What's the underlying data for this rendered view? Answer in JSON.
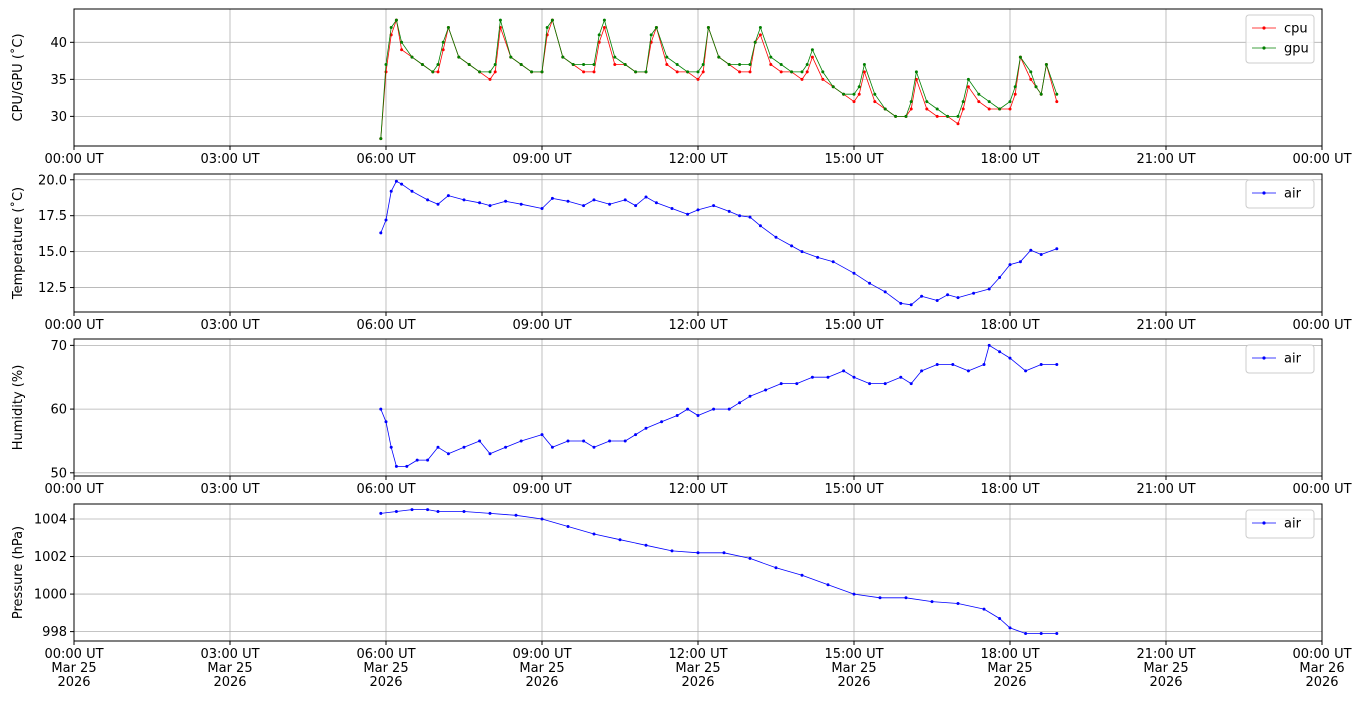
{
  "chart_data": [
    {
      "type": "line",
      "ylabel": "CPU/GPU (˚C)",
      "ylim": [
        26,
        44.5
      ],
      "yticks": [
        30,
        35,
        40
      ],
      "x_tick_labels": [
        "00:00 UT",
        "03:00 UT",
        "06:00 UT",
        "09:00 UT",
        "12:00 UT",
        "15:00 UT",
        "18:00 UT",
        "21:00 UT",
        "00:00 UT"
      ],
      "x_unit": "hours since Mar 25 2026 00:00 UT",
      "xlim": [
        0,
        24
      ],
      "grid": true,
      "legend_position": "top-right",
      "series": [
        {
          "name": "cpu",
          "color": "#ff0000",
          "x": [
            5.9,
            6.0,
            6.1,
            6.2,
            6.3,
            6.5,
            6.7,
            6.9,
            7.0,
            7.1,
            7.2,
            7.4,
            7.6,
            7.8,
            8.0,
            8.1,
            8.2,
            8.4,
            8.6,
            8.8,
            9.0,
            9.1,
            9.2,
            9.4,
            9.6,
            9.8,
            10.0,
            10.1,
            10.2,
            10.4,
            10.6,
            10.8,
            11.0,
            11.1,
            11.2,
            11.4,
            11.6,
            11.8,
            12.0,
            12.1,
            12.2,
            12.4,
            12.6,
            12.8,
            13.0,
            13.1,
            13.2,
            13.4,
            13.6,
            13.8,
            14.0,
            14.1,
            14.2,
            14.4,
            14.6,
            14.8,
            15.0,
            15.1,
            15.2,
            15.4,
            15.6,
            15.8,
            16.0,
            16.1,
            16.2,
            16.4,
            16.6,
            16.8,
            17.0,
            17.1,
            17.2,
            17.4,
            17.6,
            17.8,
            18.0,
            18.1,
            18.2,
            18.4,
            18.5,
            18.6,
            18.7,
            18.9
          ],
          "y": [
            27,
            36,
            41,
            43,
            39,
            38,
            37,
            36,
            36,
            39,
            42,
            38,
            37,
            36,
            35,
            36,
            42,
            38,
            37,
            36,
            36,
            41,
            43,
            38,
            37,
            36,
            36,
            40,
            42,
            37,
            37,
            36,
            36,
            40,
            42,
            37,
            36,
            36,
            35,
            36,
            42,
            38,
            37,
            36,
            36,
            40,
            41,
            37,
            36,
            36,
            35,
            36,
            38,
            35,
            34,
            33,
            32,
            33,
            36,
            32,
            31,
            30,
            30,
            31,
            35,
            31,
            30,
            30,
            29,
            31,
            34,
            32,
            31,
            31,
            31,
            33,
            38,
            35,
            34,
            33,
            37,
            32
          ]
        },
        {
          "name": "gpu",
          "color": "#008000",
          "x": [
            5.9,
            6.0,
            6.1,
            6.2,
            6.3,
            6.5,
            6.7,
            6.9,
            7.0,
            7.1,
            7.2,
            7.4,
            7.6,
            7.8,
            8.0,
            8.1,
            8.2,
            8.4,
            8.6,
            8.8,
            9.0,
            9.1,
            9.2,
            9.4,
            9.6,
            9.8,
            10.0,
            10.1,
            10.2,
            10.4,
            10.6,
            10.8,
            11.0,
            11.1,
            11.2,
            11.4,
            11.6,
            11.8,
            12.0,
            12.1,
            12.2,
            12.4,
            12.6,
            12.8,
            13.0,
            13.1,
            13.2,
            13.4,
            13.6,
            13.8,
            14.0,
            14.1,
            14.2,
            14.4,
            14.6,
            14.8,
            15.0,
            15.1,
            15.2,
            15.4,
            15.6,
            15.8,
            16.0,
            16.1,
            16.2,
            16.4,
            16.6,
            16.8,
            17.0,
            17.1,
            17.2,
            17.4,
            17.6,
            17.8,
            18.0,
            18.1,
            18.2,
            18.4,
            18.5,
            18.6,
            18.7,
            18.9
          ],
          "y": [
            27,
            37,
            42,
            43,
            40,
            38,
            37,
            36,
            37,
            40,
            42,
            38,
            37,
            36,
            36,
            37,
            43,
            38,
            37,
            36,
            36,
            42,
            43,
            38,
            37,
            37,
            37,
            41,
            43,
            38,
            37,
            36,
            36,
            41,
            42,
            38,
            37,
            36,
            36,
            37,
            42,
            38,
            37,
            37,
            37,
            40,
            42,
            38,
            37,
            36,
            36,
            37,
            39,
            36,
            34,
            33,
            33,
            34,
            37,
            33,
            31,
            30,
            30,
            32,
            36,
            32,
            31,
            30,
            30,
            32,
            35,
            33,
            32,
            31,
            32,
            34,
            38,
            36,
            34,
            33,
            37,
            33
          ]
        }
      ]
    },
    {
      "type": "line",
      "ylabel": "Temperature (˚C)",
      "ylim": [
        10.8,
        20.4
      ],
      "yticks": [
        12.5,
        15.0,
        17.5,
        20.0
      ],
      "x_tick_labels": [
        "00:00 UT",
        "03:00 UT",
        "06:00 UT",
        "09:00 UT",
        "12:00 UT",
        "15:00 UT",
        "18:00 UT",
        "21:00 UT",
        "00:00 UT"
      ],
      "x_unit": "hours since Mar 25 2026 00:00 UT",
      "xlim": [
        0,
        24
      ],
      "grid": true,
      "legend_position": "top-right",
      "series": [
        {
          "name": "air",
          "color": "#0000ff",
          "x": [
            5.9,
            6.0,
            6.1,
            6.2,
            6.3,
            6.5,
            6.8,
            7.0,
            7.2,
            7.5,
            7.8,
            8.0,
            8.3,
            8.6,
            9.0,
            9.2,
            9.5,
            9.8,
            10.0,
            10.3,
            10.6,
            10.8,
            11.0,
            11.2,
            11.5,
            11.8,
            12.0,
            12.3,
            12.6,
            12.8,
            13.0,
            13.2,
            13.5,
            13.8,
            14.0,
            14.3,
            14.6,
            15.0,
            15.3,
            15.6,
            15.9,
            16.1,
            16.3,
            16.6,
            16.8,
            17.0,
            17.3,
            17.6,
            17.8,
            18.0,
            18.2,
            18.4,
            18.6,
            18.9
          ],
          "y": [
            16.3,
            17.2,
            19.2,
            19.9,
            19.7,
            19.2,
            18.6,
            18.3,
            18.9,
            18.6,
            18.4,
            18.2,
            18.5,
            18.3,
            18.0,
            18.7,
            18.5,
            18.2,
            18.6,
            18.3,
            18.6,
            18.2,
            18.8,
            18.4,
            18.0,
            17.6,
            17.9,
            18.2,
            17.8,
            17.5,
            17.4,
            16.8,
            16.0,
            15.4,
            15.0,
            14.6,
            14.3,
            13.5,
            12.8,
            12.2,
            11.4,
            11.3,
            11.9,
            11.6,
            12.0,
            11.8,
            12.1,
            12.4,
            13.2,
            14.1,
            14.3,
            15.1,
            14.8,
            15.2
          ]
        }
      ]
    },
    {
      "type": "line",
      "ylabel": "Humidity (%)",
      "ylim": [
        49.5,
        71
      ],
      "yticks": [
        50,
        60,
        70
      ],
      "x_tick_labels": [
        "00:00 UT",
        "03:00 UT",
        "06:00 UT",
        "09:00 UT",
        "12:00 UT",
        "15:00 UT",
        "18:00 UT",
        "21:00 UT",
        "00:00 UT"
      ],
      "x_unit": "hours since Mar 25 2026 00:00 UT",
      "xlim": [
        0,
        24
      ],
      "grid": true,
      "legend_position": "top-right",
      "series": [
        {
          "name": "air",
          "color": "#0000ff",
          "x": [
            5.9,
            6.0,
            6.1,
            6.2,
            6.4,
            6.6,
            6.8,
            7.0,
            7.2,
            7.5,
            7.8,
            8.0,
            8.3,
            8.6,
            9.0,
            9.2,
            9.5,
            9.8,
            10.0,
            10.3,
            10.6,
            10.8,
            11.0,
            11.3,
            11.6,
            11.8,
            12.0,
            12.3,
            12.6,
            12.8,
            13.0,
            13.3,
            13.6,
            13.9,
            14.2,
            14.5,
            14.8,
            15.0,
            15.3,
            15.6,
            15.9,
            16.1,
            16.3,
            16.6,
            16.9,
            17.2,
            17.5,
            17.6,
            17.8,
            18.0,
            18.3,
            18.6,
            18.9
          ],
          "y": [
            60,
            58,
            54,
            51,
            51,
            52,
            52,
            54,
            53,
            54,
            55,
            53,
            54,
            55,
            56,
            54,
            55,
            55,
            54,
            55,
            55,
            56,
            57,
            58,
            59,
            60,
            59,
            60,
            60,
            61,
            62,
            63,
            64,
            64,
            65,
            65,
            66,
            65,
            64,
            64,
            65,
            64,
            66,
            67,
            67,
            66,
            67,
            70,
            69,
            68,
            66,
            67,
            67
          ]
        }
      ]
    },
    {
      "type": "line",
      "ylabel": "Pressure (hPa)",
      "ylim": [
        997.5,
        1004.8
      ],
      "yticks": [
        998,
        1000,
        1002,
        1004
      ],
      "x_tick_labels": [
        "00:00 UT\nMar 25\n2026",
        "03:00 UT\nMar 25\n2026",
        "06:00 UT\nMar 25\n2026",
        "09:00 UT\nMar 25\n2026",
        "12:00 UT\nMar 25\n2026",
        "15:00 UT\nMar 25\n2026",
        "18:00 UT\nMar 25\n2026",
        "21:00 UT\nMar 25\n2026",
        "00:00 UT\nMar 26\n2026"
      ],
      "x_unit": "hours since Mar 25 2026 00:00 UT",
      "xlim": [
        0,
        24
      ],
      "grid": true,
      "legend_position": "top-right",
      "series": [
        {
          "name": "air",
          "color": "#0000ff",
          "x": [
            5.9,
            6.2,
            6.5,
            6.8,
            7.0,
            7.5,
            8.0,
            8.5,
            9.0,
            9.5,
            10.0,
            10.5,
            11.0,
            11.5,
            12.0,
            12.5,
            13.0,
            13.5,
            14.0,
            14.5,
            15.0,
            15.5,
            16.0,
            16.5,
            17.0,
            17.5,
            17.8,
            18.0,
            18.3,
            18.6,
            18.9
          ],
          "y": [
            1004.3,
            1004.4,
            1004.5,
            1004.5,
            1004.4,
            1004.4,
            1004.3,
            1004.2,
            1004.0,
            1003.6,
            1003.2,
            1002.9,
            1002.6,
            1002.3,
            1002.2,
            1002.2,
            1001.9,
            1001.4,
            1001.0,
            1000.5,
            1000.0,
            999.8,
            999.8,
            999.6,
            999.5,
            999.2,
            998.7,
            998.2,
            997.9,
            997.9,
            997.9
          ]
        }
      ]
    }
  ]
}
